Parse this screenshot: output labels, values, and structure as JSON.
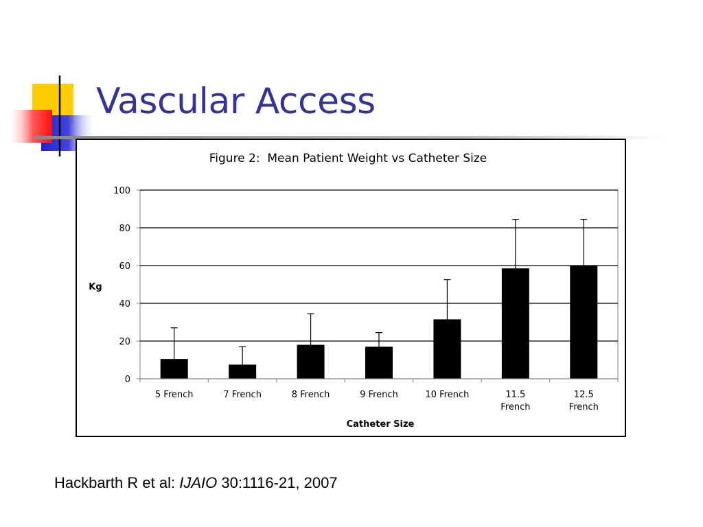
{
  "slide": {
    "title": "Vascular Access",
    "title_color": "#333399"
  },
  "citation": {
    "authors": "Hackbarth R et al:",
    "journal": "IJAIO",
    "reference": "30:1116-21, 2007"
  },
  "chart_data": {
    "type": "bar",
    "title": "Figure 2:  Mean Patient Weight vs Catheter Size",
    "xlabel": "Catheter Size",
    "ylabel": "Kg",
    "ylim": [
      0,
      100
    ],
    "yticks": [
      0,
      20,
      40,
      60,
      80,
      100
    ],
    "grid": true,
    "bar_color": "#000000",
    "categories": [
      [
        "5 French"
      ],
      [
        "7 French"
      ],
      [
        "8 French"
      ],
      [
        "9 French"
      ],
      [
        "10 French"
      ],
      [
        "11.5",
        "French"
      ],
      [
        "12.5",
        "French"
      ]
    ],
    "values": [
      10.5,
      7.5,
      18,
      17,
      31.5,
      58.5,
      60
    ],
    "error_upper": [
      27,
      17,
      34.5,
      24.5,
      52.5,
      84.5,
      84.5
    ]
  }
}
